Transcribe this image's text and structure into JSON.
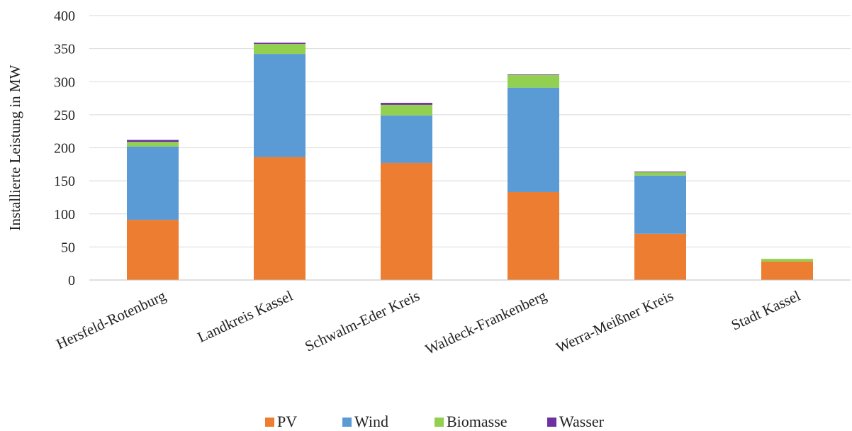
{
  "chart_data": {
    "type": "bar",
    "stacked": true,
    "categories": [
      "Hersfeld-Rotenburg",
      "Landkreis Kassel",
      "Schwalm-Eder Kreis",
      "Waldeck-Frankenberg",
      "Werra-Meißner Kreis",
      "Stadt Kassel"
    ],
    "series": [
      {
        "name": "PV",
        "color": "#ED7D31",
        "values": [
          91,
          186,
          177,
          133,
          70,
          28
        ]
      },
      {
        "name": "Wind",
        "color": "#5B9BD5",
        "values": [
          111,
          156,
          72,
          158,
          88,
          0
        ]
      },
      {
        "name": "Biomasse",
        "color": "#92D050",
        "values": [
          7,
          15,
          16,
          19,
          5,
          4
        ]
      },
      {
        "name": "Wasser",
        "color": "#7030A0",
        "values": [
          3,
          2,
          3,
          1,
          1,
          0
        ]
      }
    ],
    "title": "",
    "xlabel": "",
    "ylabel": "Installierte Leistung in MW",
    "ylim": [
      0,
      400
    ],
    "yticks": [
      0,
      50,
      100,
      150,
      200,
      250,
      300,
      350,
      400
    ],
    "grid": true,
    "legend_position": "bottom"
  }
}
